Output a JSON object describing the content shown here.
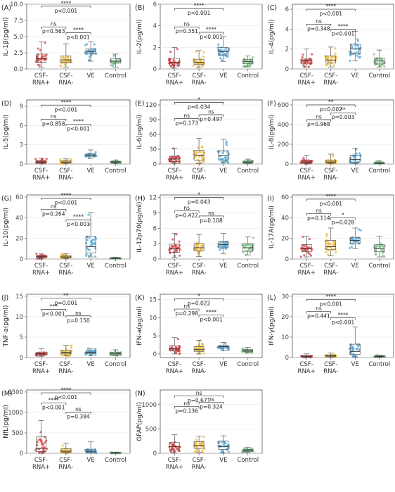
{
  "groups": [
    "CSF-RNA+",
    "CSF-RNA-",
    "VE",
    "Control"
  ],
  "colors": [
    "#d94040",
    "#f0b93a",
    "#56a8d8",
    "#7cc48a"
  ],
  "chart_data": [
    {
      "type": "box",
      "letter": "(A)",
      "ylabel": "IL-1β(pg/ml)",
      "ylim": [
        0,
        10
      ],
      "yticks": [
        "0.0",
        "2.5",
        "5.0",
        "7.5",
        "10.0"
      ],
      "tickvals": [
        0,
        2.5,
        5,
        7.5,
        10
      ],
      "stats": [
        [
          0.3,
          1.0,
          1.6,
          2.3,
          4.2
        ],
        [
          0.3,
          1.0,
          1.4,
          2.0,
          3.9
        ],
        [
          1.2,
          2.3,
          2.7,
          3.1,
          4.2
        ],
        [
          0.3,
          0.9,
          1.2,
          1.6,
          2.3
        ]
      ],
      "comparisons": [
        {
          "a": 0,
          "b": 2,
          "y": 9.7,
          "stars": "****",
          "p": "p<0.001"
        },
        {
          "a": 0,
          "b": 1,
          "y": 6.5,
          "stars": "ns",
          "p": "p=0.563"
        },
        {
          "a": 1,
          "b": 2,
          "y": 5.6,
          "stars": "****",
          "p": "p<0.001"
        }
      ]
    },
    {
      "type": "box",
      "letter": "(B)",
      "ylabel": "IL-2(pg/ml)",
      "ylim": [
        0,
        6
      ],
      "yticks": [
        "0",
        "2",
        "4",
        "6"
      ],
      "tickvals": [
        0,
        2,
        4,
        6
      ],
      "stats": [
        [
          0.1,
          0.3,
          0.6,
          1.0,
          2.0
        ],
        [
          0.1,
          0.4,
          0.6,
          0.9,
          1.7
        ],
        [
          0.7,
          1.3,
          1.6,
          2.0,
          3.0
        ],
        [
          0.2,
          0.5,
          0.7,
          0.9,
          1.2
        ]
      ],
      "comparisons": [
        {
          "a": 0,
          "b": 2,
          "y": 5.6,
          "stars": "****",
          "p": "p<0.001"
        },
        {
          "a": 0,
          "b": 1,
          "y": 3.9,
          "stars": "ns",
          "p": "p=0.351"
        },
        {
          "a": 1,
          "b": 2,
          "y": 3.4,
          "stars": "****",
          "p": "p<0.001"
        }
      ]
    },
    {
      "type": "box",
      "letter": "(C)",
      "ylabel": "IL-4(pg/ml)",
      "ylim": [
        0,
        6.5
      ],
      "yticks": [
        "0",
        "2",
        "4",
        "6"
      ],
      "tickvals": [
        0,
        2,
        4,
        6
      ],
      "stats": [
        [
          0.2,
          0.5,
          0.8,
          1.0,
          2.0
        ],
        [
          0.2,
          0.6,
          0.9,
          1.3,
          2.2
        ],
        [
          0.8,
          1.5,
          2.0,
          2.5,
          3.8
        ],
        [
          0.2,
          0.5,
          0.8,
          1.1,
          1.9
        ]
      ],
      "comparisons": [
        {
          "a": 0,
          "b": 2,
          "y": 6.0,
          "stars": "****",
          "p": "p<0.001"
        },
        {
          "a": 0,
          "b": 1,
          "y": 4.5,
          "stars": "ns",
          "p": "p=0.348"
        },
        {
          "a": 1,
          "b": 2,
          "y": 4.0,
          "stars": "****",
          "p": "p<0.001"
        }
      ]
    },
    {
      "type": "box",
      "letter": "(D)",
      "ylabel": "IL-5(pg/ml)",
      "ylim": [
        0,
        10
      ],
      "yticks": [
        "0",
        "3",
        "6",
        "9"
      ],
      "tickvals": [
        0,
        3,
        6,
        9
      ],
      "stats": [
        [
          0.05,
          0.2,
          0.3,
          0.5,
          0.9
        ],
        [
          0.05,
          0.2,
          0.3,
          0.5,
          0.8
        ],
        [
          0.9,
          1.2,
          1.4,
          1.6,
          2.2
        ],
        [
          0.05,
          0.2,
          0.3,
          0.4,
          0.6
        ]
      ],
      "comparisons": [
        {
          "a": 0,
          "b": 2,
          "y": 9.2,
          "stars": "****",
          "p": "p<0.001"
        },
        {
          "a": 0,
          "b": 1,
          "y": 7.0,
          "stars": "ns",
          "p": "p=0.858"
        },
        {
          "a": 1,
          "b": 2,
          "y": 6.2,
          "stars": "****",
          "p": "p<0.001"
        }
      ]
    },
    {
      "type": "box",
      "letter": "(E)",
      "ylabel": "IL-6(pg/ml)",
      "ylim": [
        0,
        130
      ],
      "yticks": [
        "0",
        "30",
        "60",
        "90",
        "120"
      ],
      "tickvals": [
        0,
        30,
        60,
        90,
        120
      ],
      "stats": [
        [
          1,
          5,
          10,
          16,
          32
        ],
        [
          1,
          8,
          18,
          28,
          52
        ],
        [
          2,
          8,
          17,
          27,
          50
        ],
        [
          1,
          2,
          4,
          6,
          10
        ]
      ],
      "comparisons": [
        {
          "a": 0,
          "b": 2,
          "y": 125,
          "stars": "*",
          "p": "p=0.034"
        },
        {
          "a": 0,
          "b": 1,
          "y": 92,
          "stars": "ns",
          "p": "p=0.173"
        },
        {
          "a": 1,
          "b": 2,
          "y": 100,
          "stars": "ns",
          "p": "p=0.497"
        }
      ]
    },
    {
      "type": "box",
      "letter": "(F)",
      "ylabel": "IL-8(pg/ml)",
      "ylim": [
        0,
        650
      ],
      "yticks": [
        "0",
        "200",
        "400",
        "600"
      ],
      "tickvals": [
        0,
        200,
        400,
        600
      ],
      "stats": [
        [
          3,
          10,
          20,
          40,
          90
        ],
        [
          3,
          10,
          20,
          40,
          100
        ],
        [
          5,
          20,
          45,
          90,
          160
        ],
        [
          2,
          5,
          8,
          15,
          30
        ]
      ],
      "comparisons": [
        {
          "a": 0,
          "b": 2,
          "y": 600,
          "stars": "**",
          "p": "p=0.002"
        },
        {
          "a": 0,
          "b": 1,
          "y": 450,
          "stars": "ns",
          "p": "p=0.968"
        },
        {
          "a": 1,
          "b": 2,
          "y": 520,
          "stars": "**",
          "p": "p=0.003"
        }
      ]
    },
    {
      "type": "box",
      "letter": "(G)",
      "ylabel": "IL-10(pg/ml)",
      "ylim": [
        0,
        62
      ],
      "yticks": [
        "0",
        "20",
        "40",
        "60"
      ],
      "tickvals": [
        0,
        20,
        40,
        60
      ],
      "stats": [
        [
          0.3,
          1.5,
          2.2,
          3.5,
          5.5
        ],
        [
          0.3,
          1.2,
          2.0,
          3.0,
          5.0
        ],
        [
          2,
          6,
          12,
          22,
          45
        ],
        [
          0.2,
          0.5,
          0.8,
          1.0,
          1.5
        ]
      ],
      "comparisons": [
        {
          "a": 0,
          "b": 2,
          "y": 59,
          "stars": "****",
          "p": "p<0.001"
        },
        {
          "a": 0,
          "b": 1,
          "y": 48,
          "stars": "ns",
          "p": "p=0.264"
        },
        {
          "a": 1,
          "b": 2,
          "y": 38,
          "stars": "****",
          "p": "p<0.001"
        }
      ]
    },
    {
      "type": "box",
      "letter": "(H)",
      "ylabel": "IL-12p70(pg/ml)",
      "ylim": [
        0,
        12.5
      ],
      "yticks": [
        "0",
        "3",
        "6",
        "9",
        "12"
      ],
      "tickvals": [
        0,
        3,
        6,
        9,
        12
      ],
      "stats": [
        [
          0.3,
          1.3,
          2.0,
          2.9,
          5.0
        ],
        [
          0.5,
          1.6,
          2.2,
          3.0,
          4.8
        ],
        [
          1.0,
          2.2,
          2.8,
          3.4,
          5.0
        ],
        [
          0.8,
          1.5,
          2.2,
          3.0,
          4.3
        ]
      ],
      "comparisons": [
        {
          "a": 0,
          "b": 2,
          "y": 12.0,
          "stars": "*",
          "p": "p=0.043"
        },
        {
          "a": 0,
          "b": 1,
          "y": 9.4,
          "stars": "ns",
          "p": "p=0.422"
        },
        {
          "a": 1,
          "b": 2,
          "y": 8.4,
          "stars": "ns",
          "p": "p=0.108"
        }
      ]
    },
    {
      "type": "box",
      "letter": "(I)",
      "ylabel": "IL-17A(pg/ml)",
      "ylim": [
        0,
        62
      ],
      "yticks": [
        "0",
        "20",
        "40",
        "60"
      ],
      "tickvals": [
        0,
        20,
        40,
        60
      ],
      "stats": [
        [
          2,
          7,
          10,
          14,
          22
        ],
        [
          3,
          9,
          12,
          18,
          30
        ],
        [
          10,
          15,
          18,
          21,
          30
        ],
        [
          2,
          7,
          10,
          14,
          22
        ]
      ],
      "comparisons": [
        {
          "a": 0,
          "b": 2,
          "y": 58,
          "stars": "****",
          "p": "p<0.001"
        },
        {
          "a": 0,
          "b": 1,
          "y": 44,
          "stars": "ns",
          "p": "p=0.114"
        },
        {
          "a": 1,
          "b": 2,
          "y": 40,
          "stars": "*",
          "p": "p=0.028"
        }
      ]
    },
    {
      "type": "box",
      "letter": "(J)",
      "ylabel": "TNF-a(pg/ml)",
      "ylim": [
        0,
        15.5
      ],
      "yticks": [
        "0",
        "5",
        "10",
        "15"
      ],
      "tickvals": [
        0,
        5,
        10,
        15
      ],
      "stats": [
        [
          0.3,
          0.6,
          0.9,
          1.2,
          2.2
        ],
        [
          0.4,
          0.9,
          1.3,
          1.8,
          3.0
        ],
        [
          0.5,
          1.0,
          1.3,
          1.7,
          2.2
        ],
        [
          0.4,
          0.7,
          1.0,
          1.3,
          1.9
        ]
      ],
      "comparisons": [
        {
          "a": 0,
          "b": 2,
          "y": 14.5,
          "stars": "**",
          "p": "p=0.001"
        },
        {
          "a": 0,
          "b": 1,
          "y": 11.8,
          "stars": "***",
          "p": "p<0.001"
        },
        {
          "a": 1,
          "b": 2,
          "y": 10.2,
          "stars": "ns",
          "p": "p=0.150"
        }
      ]
    },
    {
      "type": "box",
      "letter": "(K)",
      "ylabel": "IFN-a(pg/ml)",
      "ylim": [
        -1,
        16.5
      ],
      "yticks": [
        "0",
        "5",
        "10",
        "15"
      ],
      "tickvals": [
        0,
        5,
        10,
        15
      ],
      "stats": [
        [
          0,
          0.8,
          1.4,
          2.3,
          4.5
        ],
        [
          0,
          0.7,
          1.2,
          2.0,
          3.8
        ],
        [
          1.0,
          1.6,
          2.0,
          2.3,
          3.2
        ],
        [
          0.3,
          0.6,
          0.9,
          1.2,
          1.8
        ]
      ],
      "comparisons": [
        {
          "a": 0,
          "b": 2,
          "y": 15.2,
          "stars": "*",
          "p": "p=0.022"
        },
        {
          "a": 0,
          "b": 1,
          "y": 12.4,
          "stars": "ns",
          "p": "p=0.298"
        },
        {
          "a": 1,
          "b": 2,
          "y": 10.8,
          "stars": "****",
          "p": "p<0.001"
        }
      ]
    },
    {
      "type": "box",
      "letter": "(L)",
      "ylabel": "IFN-γ(pg/ml)",
      "ylim": [
        0,
        31
      ],
      "yticks": [
        "0",
        "10",
        "20",
        "30"
      ],
      "tickvals": [
        0,
        10,
        20,
        30
      ],
      "stats": [
        [
          0.1,
          0.3,
          0.6,
          0.9,
          1.8
        ],
        [
          0.1,
          0.4,
          0.8,
          1.2,
          2.2
        ],
        [
          0.3,
          1.5,
          3.0,
          6.5,
          15
        ],
        [
          0.1,
          0.3,
          0.5,
          0.8,
          1.2
        ]
      ],
      "comparisons": [
        {
          "a": 0,
          "b": 2,
          "y": 28.5,
          "stars": "****",
          "p": "p<0.001"
        },
        {
          "a": 0,
          "b": 1,
          "y": 22.5,
          "stars": "ns",
          "p": "p=0.441"
        },
        {
          "a": 1,
          "b": 2,
          "y": 19.5,
          "stars": "****",
          "p": "p<0.001"
        }
      ]
    },
    {
      "type": "box",
      "letter": "(M)",
      "ylabel": "NfL(pg/ml)",
      "ylim": [
        0,
        1550
      ],
      "yticks": [
        "0",
        "500",
        "1000",
        "1500"
      ],
      "tickvals": [
        0,
        500,
        1000,
        1500
      ],
      "stats": [
        [
          5,
          40,
          120,
          400,
          800
        ],
        [
          3,
          20,
          50,
          110,
          250
        ],
        [
          3,
          20,
          50,
          100,
          280
        ],
        [
          2,
          5,
          10,
          15,
          25
        ]
      ],
      "comparisons": [
        {
          "a": 0,
          "b": 2,
          "y": 1480,
          "stars": "****",
          "p": "p<0.001"
        },
        {
          "a": 0,
          "b": 1,
          "y": 1230,
          "stars": "****",
          "p": "p<0.001"
        },
        {
          "a": 1,
          "b": 2,
          "y": 1010,
          "stars": "ns",
          "p": "p=0.384"
        }
      ]
    },
    {
      "type": "box",
      "letter": "(N)",
      "ylabel": "GFAP(pg/ml)",
      "ylim": [
        0,
        1300
      ],
      "yticks": [
        "0",
        "500",
        "1000"
      ],
      "tickvals": [
        0,
        500,
        1000
      ],
      "stats": [
        [
          10,
          70,
          140,
          220,
          380
        ],
        [
          20,
          100,
          160,
          240,
          350
        ],
        [
          10,
          80,
          140,
          250,
          360
        ],
        [
          20,
          40,
          60,
          80,
          120
        ]
      ],
      "comparisons": [
        {
          "a": 0,
          "b": 2,
          "y": 1180,
          "stars": "ns",
          "p": "p=0.671"
        },
        {
          "a": 0,
          "b": 1,
          "y": 960,
          "stars": "ns",
          "p": "p=0.136"
        },
        {
          "a": 1,
          "b": 2,
          "y": 1050,
          "stars": "ns",
          "p": "p=0.324"
        }
      ]
    }
  ]
}
